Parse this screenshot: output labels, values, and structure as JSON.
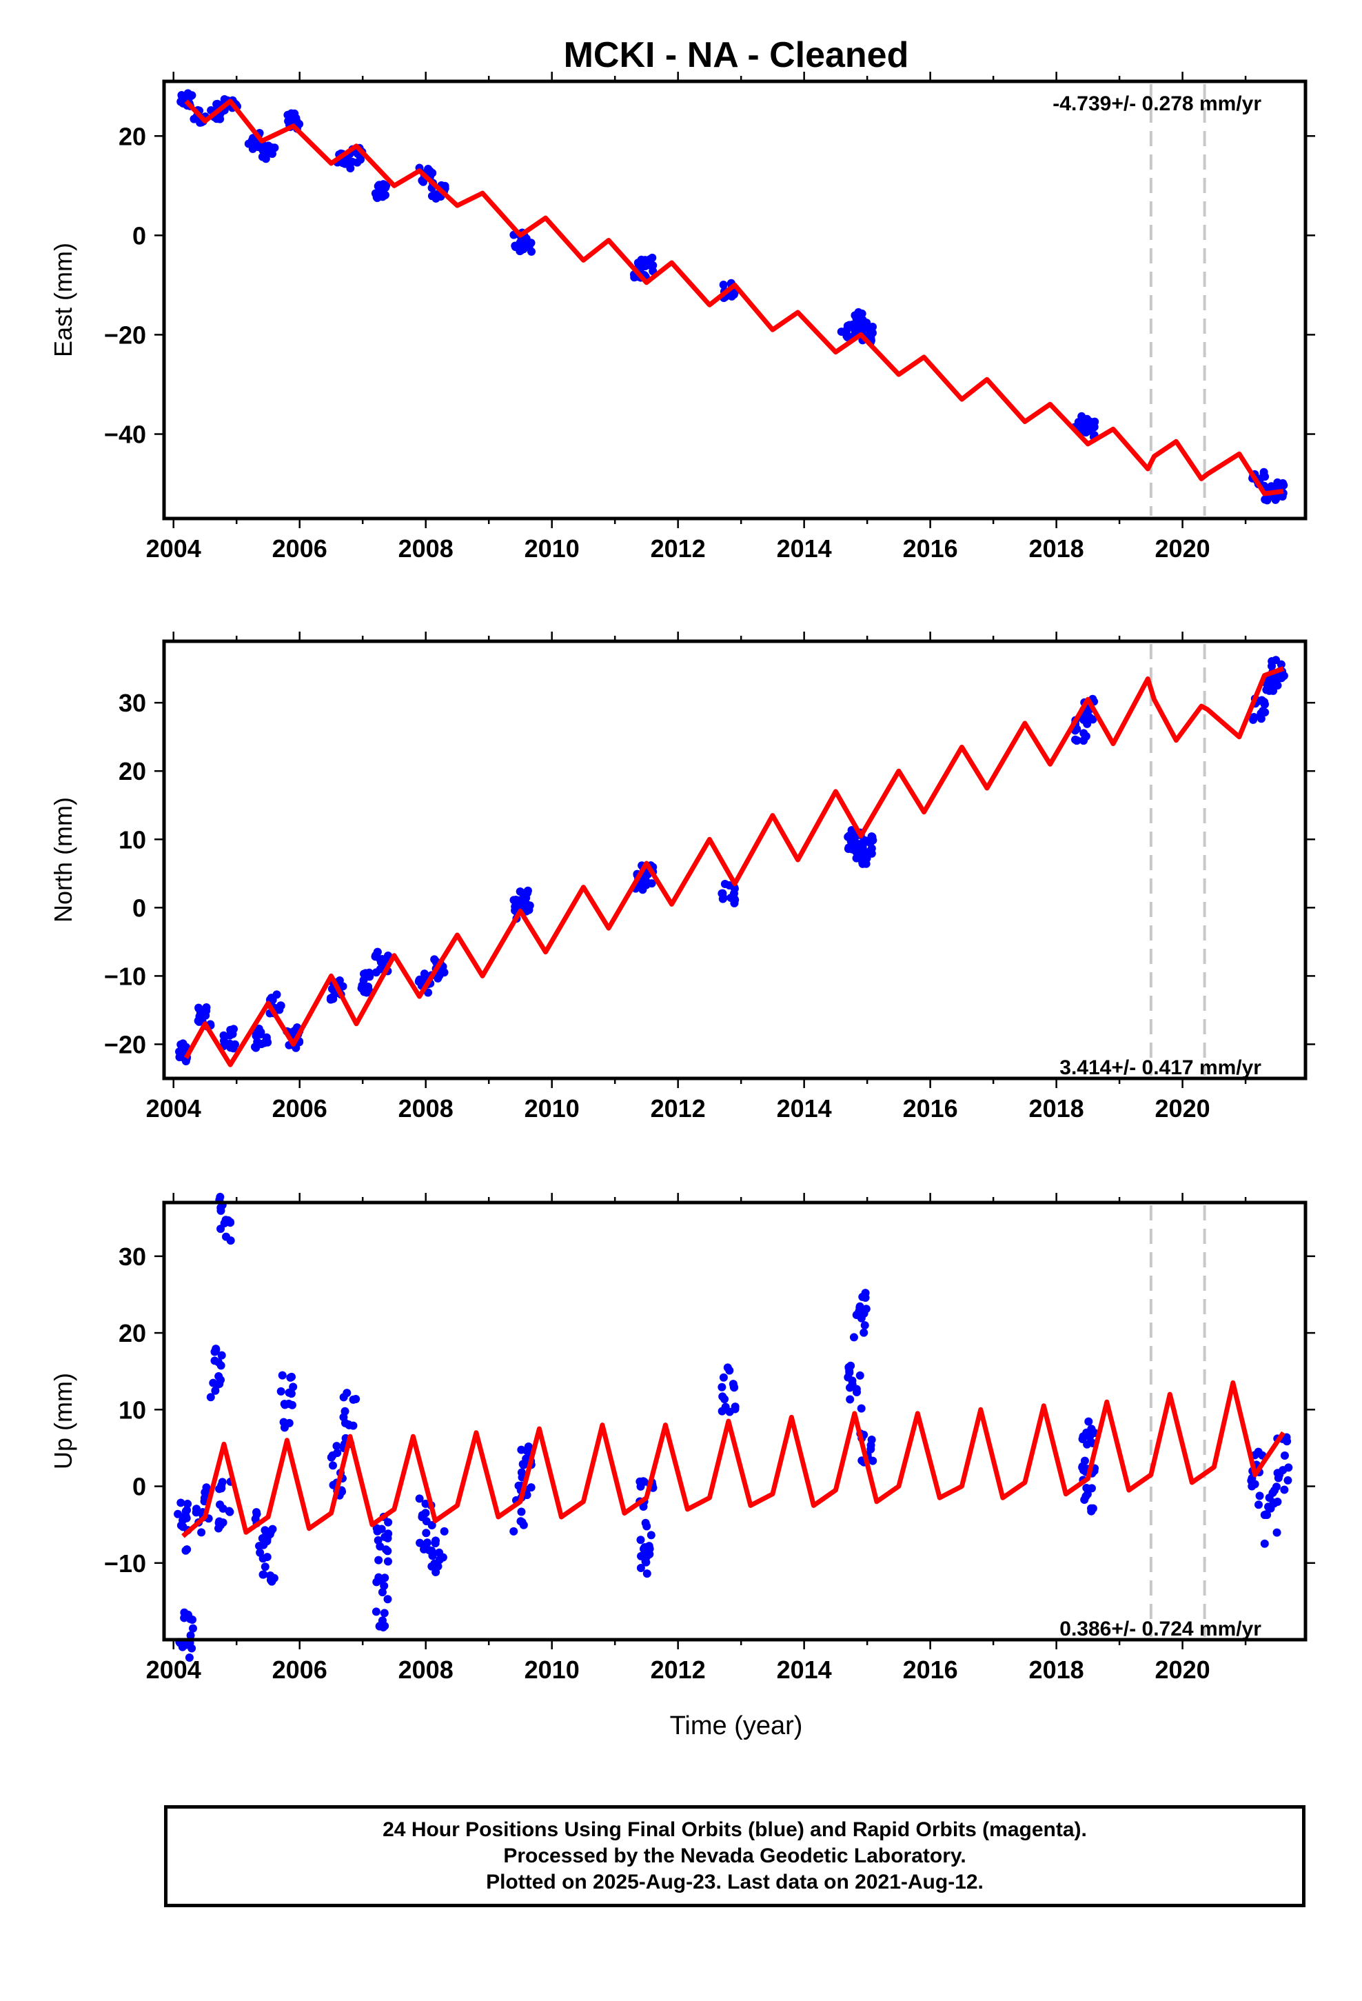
{
  "title": "MCKI  - NA - Cleaned",
  "xlabel": "Time (year)",
  "footer": {
    "line1": "24 Hour Positions Using Final Orbits (blue) and Rapid Orbits (magenta).",
    "line2": "Processed by the Nevada Geodetic Laboratory.",
    "line3": "Plotted on 2025-Aug-23. Last data on 2021-Aug-12."
  },
  "colors": {
    "observations": "#0000ff",
    "model": "#ff0000",
    "offsets": "#c8c8c8",
    "frame": "#000000"
  },
  "chart_data": [
    {
      "type": "scatter",
      "ylabel": "East (mm)",
      "rate_label": "-4.739+/- 0.278 mm/yr",
      "xlim": [
        2003.85,
        2021.95
      ],
      "ylim": [
        -57,
        31
      ],
      "xticks": [
        2004,
        2006,
        2008,
        2010,
        2012,
        2014,
        2016,
        2018,
        2020
      ],
      "yticks": [
        -40,
        -20,
        0,
        20
      ],
      "offsets": [
        2019.5,
        2020.35
      ],
      "series": [
        {
          "role": "observations",
          "x": [
            2004.2,
            2004.4,
            2004.7,
            2004.9,
            2005.3,
            2005.5,
            2005.9,
            2006.7,
            2006.9,
            2007.3,
            2008.0,
            2008.2,
            2009.5,
            2009.6,
            2011.4,
            2011.5,
            2012.8,
            2014.7,
            2014.9,
            2015.0,
            2018.4,
            2018.5,
            2021.2,
            2021.4,
            2021.5
          ],
          "y": [
            27,
            24,
            25,
            26,
            19,
            17,
            23,
            15,
            16,
            9,
            12,
            9,
            -1,
            -2,
            -7,
            -6,
            -11,
            -19,
            -17,
            -20,
            -38,
            -39,
            -49,
            -52,
            -51
          ]
        },
        {
          "role": "model",
          "x": [
            2004.2,
            2004.5,
            2004.9,
            2005.4,
            2005.9,
            2006.5,
            2006.9,
            2007.5,
            2007.9,
            2008.5,
            2008.9,
            2009.5,
            2009.9,
            2010.5,
            2010.9,
            2011.5,
            2011.9,
            2012.5,
            2012.9,
            2013.5,
            2013.9,
            2014.5,
            2014.9,
            2015.5,
            2015.9,
            2016.5,
            2016.9,
            2017.5,
            2017.9,
            2018.5,
            2018.9,
            2019.45,
            2019.55,
            2019.9,
            2020.3,
            2020.4,
            2020.9,
            2021.3,
            2021.6
          ],
          "y": [
            27,
            23,
            27,
            19,
            22,
            14.5,
            18,
            10,
            13,
            6,
            8.5,
            0,
            3.5,
            -5,
            -1,
            -9.5,
            -5.5,
            -14,
            -10,
            -19,
            -15.5,
            -23.5,
            -20,
            -28,
            -24.5,
            -33,
            -29,
            -37.5,
            -34,
            -42,
            -39,
            -47,
            -44.5,
            -41.5,
            -49,
            -48,
            -44,
            -52,
            -51.5
          ]
        }
      ]
    },
    {
      "type": "scatter",
      "ylabel": "North (mm)",
      "rate_label": "3.414+/- 0.417 mm/yr",
      "xlim": [
        2003.85,
        2021.95
      ],
      "ylim": [
        -25,
        39
      ],
      "xticks": [
        2004,
        2006,
        2008,
        2010,
        2012,
        2014,
        2016,
        2018,
        2020
      ],
      "yticks": [
        -20,
        -10,
        0,
        10,
        20,
        30
      ],
      "offsets": [
        2019.5,
        2020.35
      ],
      "series": [
        {
          "role": "observations",
          "x": [
            2004.2,
            2004.5,
            2004.9,
            2005.4,
            2005.6,
            2005.9,
            2006.6,
            2007.0,
            2007.3,
            2008.0,
            2008.2,
            2009.5,
            2009.6,
            2011.4,
            2011.5,
            2012.8,
            2014.8,
            2014.9,
            2015.0,
            2018.4,
            2018.5,
            2021.2,
            2021.4,
            2021.5
          ],
          "y": [
            -21,
            -16,
            -19,
            -19,
            -14,
            -19,
            -12,
            -11,
            -8,
            -11,
            -9,
            0,
            1,
            4,
            5,
            2,
            10,
            8,
            9,
            26,
            29,
            29,
            33,
            35
          ]
        },
        {
          "role": "model",
          "x": [
            2004.2,
            2004.5,
            2004.9,
            2005.5,
            2005.9,
            2006.5,
            2006.9,
            2007.5,
            2007.9,
            2008.5,
            2008.9,
            2009.5,
            2009.9,
            2010.5,
            2010.9,
            2011.5,
            2011.9,
            2012.5,
            2012.9,
            2013.5,
            2013.9,
            2014.5,
            2014.9,
            2015.5,
            2015.9,
            2016.5,
            2016.9,
            2017.5,
            2017.9,
            2018.5,
            2018.9,
            2019.45,
            2019.55,
            2019.9,
            2020.3,
            2020.4,
            2020.9,
            2021.3,
            2021.6
          ],
          "y": [
            -22,
            -17,
            -23,
            -14,
            -20,
            -10,
            -17,
            -7,
            -13,
            -4,
            -10,
            -0.5,
            -6.5,
            3,
            -3,
            6.5,
            0.5,
            10,
            3.5,
            13.5,
            7,
            17,
            10.5,
            20,
            14,
            23.5,
            17.5,
            27,
            21,
            30.5,
            24,
            33.5,
            30.5,
            24.5,
            29.5,
            29,
            25,
            34,
            35
          ]
        }
      ]
    },
    {
      "type": "scatter",
      "ylabel": "Up (mm)",
      "rate_label": "0.386+/- 0.724 mm/yr",
      "xlim": [
        2003.85,
        2021.95
      ],
      "ylim": [
        -20,
        37
      ],
      "xticks": [
        2004,
        2006,
        2008,
        2010,
        2012,
        2014,
        2016,
        2018,
        2020
      ],
      "yticks": [
        -10,
        0,
        10,
        20,
        30
      ],
      "offsets": [
        2019.5,
        2020.35
      ],
      "series": [
        {
          "role": "observations",
          "x": [
            2004.15,
            2004.2,
            2004.45,
            2004.7,
            2004.8,
            2004.8,
            2005.4,
            2005.5,
            2005.8,
            2006.6,
            2006.8,
            2007.3,
            2007.3,
            2008.0,
            2008.2,
            2009.5,
            2009.6,
            2011.5,
            2011.5,
            2012.8,
            2014.8,
            2014.9,
            2015.0,
            2018.5,
            2018.5,
            2021.2,
            2021.4,
            2021.6
          ],
          "y": [
            -5,
            -19,
            -3,
            15,
            35.5,
            -2,
            -6,
            -9,
            11,
            2,
            9,
            -7,
            -15,
            -5,
            -9,
            -3,
            3,
            -2,
            -8,
            12,
            13,
            22,
            6,
            0,
            5,
            1,
            -4,
            3
          ]
        },
        {
          "role": "model",
          "x": [
            2004.15,
            2004.5,
            2004.8,
            2005.15,
            2005.5,
            2005.8,
            2006.15,
            2006.5,
            2006.8,
            2007.15,
            2007.5,
            2007.8,
            2008.15,
            2008.5,
            2008.8,
            2009.15,
            2009.5,
            2009.8,
            2010.15,
            2010.5,
            2010.8,
            2011.15,
            2011.5,
            2011.8,
            2012.15,
            2012.5,
            2012.8,
            2013.15,
            2013.5,
            2013.8,
            2014.15,
            2014.5,
            2014.8,
            2015.15,
            2015.5,
            2015.8,
            2016.15,
            2016.5,
            2016.8,
            2017.15,
            2017.5,
            2017.8,
            2018.15,
            2018.5,
            2018.8,
            2019.15,
            2019.5,
            2019.8,
            2020.15,
            2020.5,
            2020.8,
            2021.15,
            2021.6
          ],
          "y": [
            -6.5,
            -4,
            5.5,
            -6,
            -4,
            6,
            -5.5,
            -3.5,
            6.5,
            -5,
            -3,
            6.5,
            -4.5,
            -2.5,
            7,
            -4,
            -2,
            7.5,
            -4,
            -2,
            8,
            -3.5,
            -1.5,
            8,
            -3,
            -1.5,
            8.5,
            -2.5,
            -1,
            9,
            -2.5,
            -0.5,
            9.5,
            -2,
            0,
            9.5,
            -1.5,
            0,
            10,
            -1.5,
            0.5,
            10.5,
            -1,
            1,
            11,
            -0.5,
            1.5,
            12,
            0.5,
            2.5,
            13.5,
            1.5,
            7
          ]
        }
      ]
    }
  ]
}
